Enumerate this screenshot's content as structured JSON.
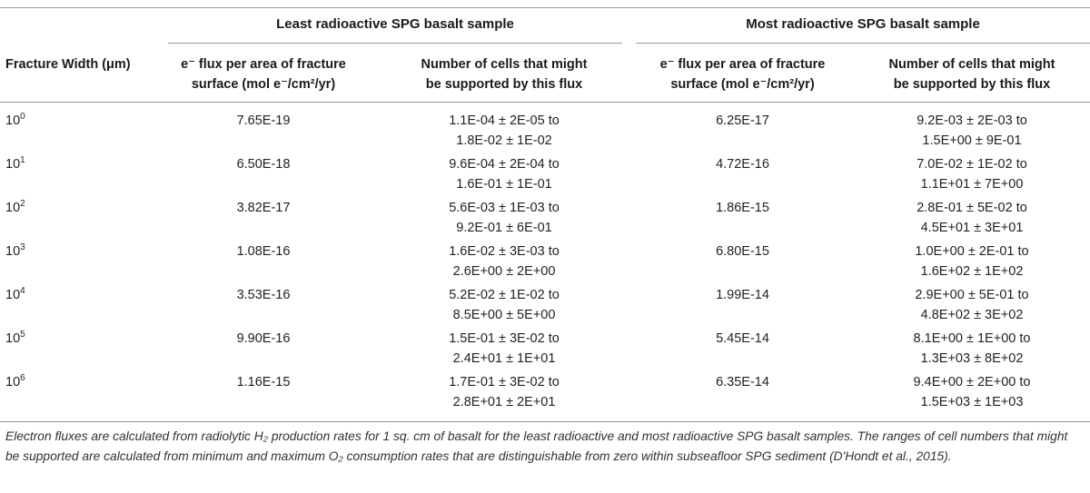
{
  "groups": {
    "least": "Least radioactive SPG basalt sample",
    "most": "Most radioactive SPG basalt sample"
  },
  "headers": {
    "fracture_width": "Fracture Width (μm)",
    "flux_line1": "e⁻ flux per area of fracture",
    "flux_line2": "surface (mol e⁻/cm²/yr)",
    "cells_line1": "Number of cells that might",
    "cells_line2": "be supported by this flux"
  },
  "rows": [
    {
      "base": "10",
      "exp": "0",
      "least_flux": "7.65E-19",
      "least_cells_1": "1.1E-04 ± 2E-05 to",
      "least_cells_2": "1.8E-02 ± 1E-02",
      "most_flux": "6.25E-17",
      "most_cells_1": "9.2E-03 ± 2E-03 to",
      "most_cells_2": "1.5E+00 ± 9E-01"
    },
    {
      "base": "10",
      "exp": "1",
      "least_flux": "6.50E-18",
      "least_cells_1": "9.6E-04 ± 2E-04 to",
      "least_cells_2": "1.6E-01 ± 1E-01",
      "most_flux": "4.72E-16",
      "most_cells_1": "7.0E-02 ± 1E-02 to",
      "most_cells_2": "1.1E+01 ± 7E+00"
    },
    {
      "base": "10",
      "exp": "2",
      "least_flux": "3.82E-17",
      "least_cells_1": "5.6E-03 ± 1E-03 to",
      "least_cells_2": "9.2E-01 ± 6E-01",
      "most_flux": "1.86E-15",
      "most_cells_1": "2.8E-01 ± 5E-02 to",
      "most_cells_2": "4.5E+01 ± 3E+01"
    },
    {
      "base": "10",
      "exp": "3",
      "least_flux": "1.08E-16",
      "least_cells_1": "1.6E-02 ± 3E-03 to",
      "least_cells_2": "2.6E+00 ± 2E+00",
      "most_flux": "6.80E-15",
      "most_cells_1": "1.0E+00 ± 2E-01 to",
      "most_cells_2": "1.6E+02 ± 1E+02"
    },
    {
      "base": "10",
      "exp": "4",
      "least_flux": "3.53E-16",
      "least_cells_1": "5.2E-02 ± 1E-02 to",
      "least_cells_2": "8.5E+00 ± 5E+00",
      "most_flux": "1.99E-14",
      "most_cells_1": "2.9E+00 ± 5E-01 to",
      "most_cells_2": "4.8E+02 ± 3E+02"
    },
    {
      "base": "10",
      "exp": "5",
      "least_flux": "9.90E-16",
      "least_cells_1": "1.5E-01 ± 3E-02 to",
      "least_cells_2": "2.4E+01 ± 1E+01",
      "most_flux": "5.45E-14",
      "most_cells_1": "8.1E+00 ± 1E+00 to",
      "most_cells_2": "1.3E+03 ± 8E+02"
    },
    {
      "base": "10",
      "exp": "6",
      "least_flux": "1.16E-15",
      "least_cells_1": "1.7E-01 ± 3E-02 to",
      "least_cells_2": "2.8E+01 ± 2E+01",
      "most_flux": "6.35E-14",
      "most_cells_1": "9.4E+00 ± 2E+00 to",
      "most_cells_2": "1.5E+03 ± 1E+03"
    }
  ],
  "footnote": "Electron fluxes are calculated from radiolytic H₂ production rates for 1 sq. cm of basalt for the least radioactive and most radioactive SPG basalt samples. The ranges of cell numbers that might be supported are calculated from minimum and maximum O₂ consumption rates that are distinguishable from zero within subseafloor SPG sediment (D'Hondt et al., 2015)."
}
